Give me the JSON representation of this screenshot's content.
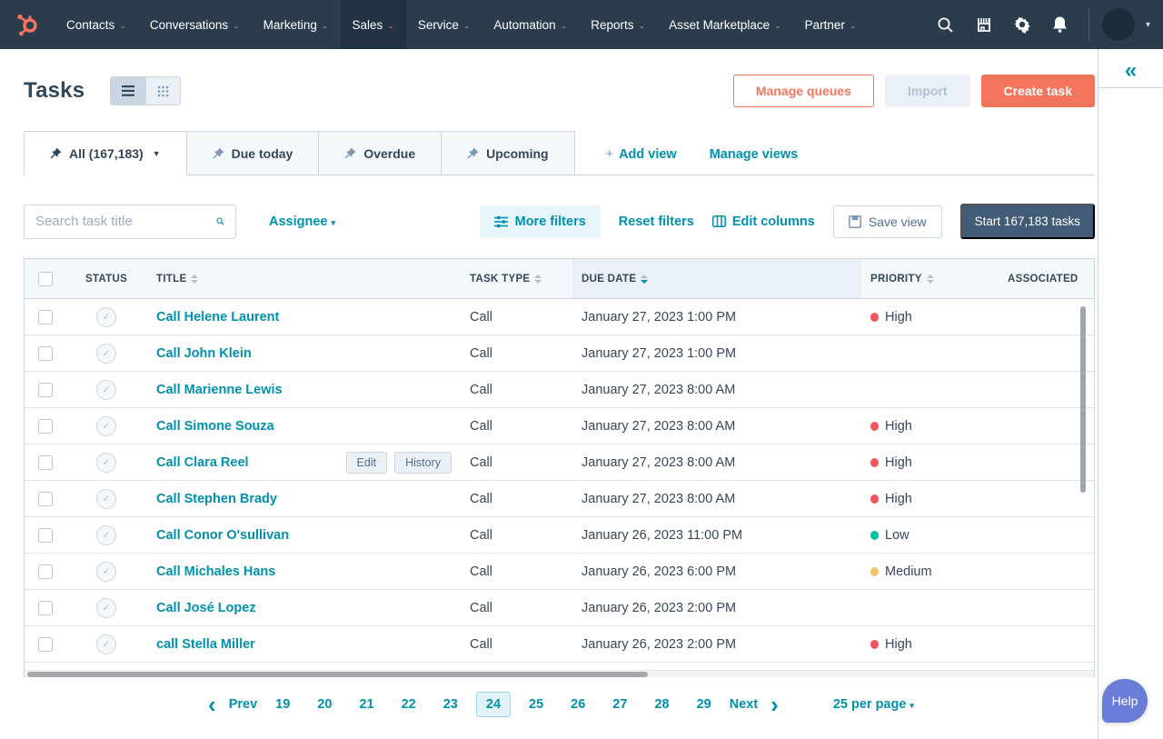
{
  "nav": {
    "items": [
      {
        "label": "Contacts",
        "active": false
      },
      {
        "label": "Conversations",
        "active": false
      },
      {
        "label": "Marketing",
        "active": false
      },
      {
        "label": "Sales",
        "active": true
      },
      {
        "label": "Service",
        "active": false
      },
      {
        "label": "Automation",
        "active": false
      },
      {
        "label": "Reports",
        "active": false
      },
      {
        "label": "Asset Marketplace",
        "active": false
      },
      {
        "label": "Partner",
        "active": false
      }
    ],
    "icon_names": [
      "search-icon",
      "marketplace-icon",
      "settings-icon",
      "notifications-icon"
    ],
    "brand_color": "#f5745c",
    "bg_color": "#2b3c4d"
  },
  "header": {
    "title": "Tasks",
    "manage_queues_label": "Manage queues",
    "import_label": "Import",
    "create_task_label": "Create task"
  },
  "tabs": [
    {
      "label": "All (167,183)",
      "active": true,
      "has_caret": true
    },
    {
      "label": "Due today",
      "active": false,
      "has_caret": false
    },
    {
      "label": "Overdue",
      "active": false,
      "has_caret": false
    },
    {
      "label": "Upcoming",
      "active": false,
      "has_caret": false
    }
  ],
  "views": {
    "add_plus": "+",
    "add_view": "Add view",
    "manage_views": "Manage views"
  },
  "filters": {
    "search_placeholder": "Search task title",
    "assignee_label": "Assignee",
    "more_filters_label": "More filters",
    "reset_filters_label": "Reset filters",
    "edit_columns_label": "Edit columns",
    "save_view_label": "Save view",
    "start_tasks_label": "Start 167,183 tasks"
  },
  "table": {
    "columns": [
      "STATUS",
      "TITLE",
      "TASK TYPE",
      "DUE DATE",
      "PRIORITY",
      "ASSOCIATED"
    ],
    "sorted_column": "DUE DATE",
    "sort_direction": "desc",
    "rows": [
      {
        "title": "Call Helene Laurent",
        "type": "Call",
        "due": "January 27, 2023 1:00 PM",
        "priority": "High"
      },
      {
        "title": "Call John Klein",
        "type": "Call",
        "due": "January 27, 2023 1:00 PM",
        "priority": null
      },
      {
        "title": "Call Marienne Lewis",
        "type": "Call",
        "due": "January 27, 2023 8:00 AM",
        "priority": null
      },
      {
        "title": "Call Simone Souza",
        "type": "Call",
        "due": "January 27, 2023 8:00 AM",
        "priority": "High"
      },
      {
        "title": "Call Clara Reel",
        "type": "Call",
        "due": "January 27, 2023 8:00 AM",
        "priority": "High",
        "hover_actions": [
          "Edit",
          "History"
        ]
      },
      {
        "title": "Call Stephen Brady",
        "type": "Call",
        "due": "January 27, 2023 8:00 AM",
        "priority": "High"
      },
      {
        "title": "Call Conor O'sullivan",
        "type": "Call",
        "due": "January 26, 2023 11:00 PM",
        "priority": "Low"
      },
      {
        "title": "Call Michales Hans",
        "type": "Call",
        "due": "January 26, 2023 6:00 PM",
        "priority": "Medium"
      },
      {
        "title": "Call José Lopez",
        "type": "Call",
        "due": "January 26, 2023 2:00 PM",
        "priority": null
      },
      {
        "title": "call Stella Miller",
        "type": "Call",
        "due": "January 26, 2023 2:00 PM",
        "priority": "High"
      }
    ]
  },
  "priority_colors": {
    "High": "#f2545b",
    "Medium": "#f5c26b",
    "Low": "#00bda5"
  },
  "pagination": {
    "prev_label": "Prev",
    "next_label": "Next",
    "pages": [
      "19",
      "20",
      "21",
      "22",
      "23",
      "24",
      "25",
      "26",
      "27",
      "28",
      "29"
    ],
    "current_page": "24",
    "per_page_label": "25 per page"
  },
  "help": {
    "label": "Help"
  },
  "rail": {
    "collapse_glyph": "«"
  }
}
